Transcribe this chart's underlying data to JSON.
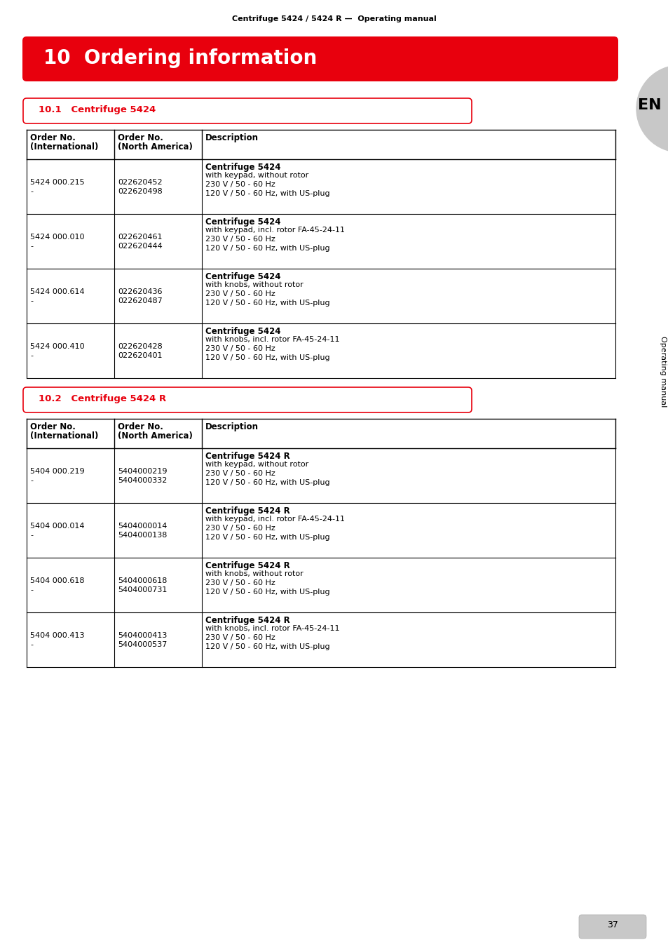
{
  "header_text": "Centrifuge 5424 / 5424 R —  Operating manual",
  "main_title": "10  Ordering information",
  "section1_title": "10.1   Centrifuge 5424",
  "section2_title": "10.2   Centrifuge 5424 R",
  "table1_rows": [
    {
      "int_order": [
        "5424 000.215",
        "-"
      ],
      "na_order": [
        "022620452",
        "022620498"
      ],
      "desc_bold": "Centrifuge 5424",
      "desc_lines": [
        "with keypad, without rotor",
        "230 V / 50 - 60 Hz",
        "120 V / 50 - 60 Hz, with US-plug"
      ]
    },
    {
      "int_order": [
        "5424 000.010",
        "-"
      ],
      "na_order": [
        "022620461",
        "022620444"
      ],
      "desc_bold": "Centrifuge 5424",
      "desc_lines": [
        "with keypad, incl. rotor FA-45-24-11",
        "230 V / 50 - 60 Hz",
        "120 V / 50 - 60 Hz, with US-plug"
      ]
    },
    {
      "int_order": [
        "5424 000.614",
        "-"
      ],
      "na_order": [
        "022620436",
        "022620487"
      ],
      "desc_bold": "Centrifuge 5424",
      "desc_lines": [
        "with knobs, without rotor",
        "230 V / 50 - 60 Hz",
        "120 V / 50 - 60 Hz, with US-plug"
      ]
    },
    {
      "int_order": [
        "5424 000.410",
        "-"
      ],
      "na_order": [
        "022620428",
        "022620401"
      ],
      "desc_bold": "Centrifuge 5424",
      "desc_lines": [
        "with knobs, incl. rotor FA-45-24-11",
        "230 V / 50 - 60 Hz",
        "120 V / 50 - 60 Hz, with US-plug"
      ]
    }
  ],
  "table2_rows": [
    {
      "int_order": [
        "5404 000.219",
        "-"
      ],
      "na_order": [
        "5404000219",
        "5404000332"
      ],
      "desc_bold": "Centrifuge 5424 R",
      "desc_lines": [
        "with keypad, without rotor",
        "230 V / 50 - 60 Hz",
        "120 V / 50 - 60 Hz, with US-plug"
      ]
    },
    {
      "int_order": [
        "5404 000.014",
        "-"
      ],
      "na_order": [
        "5404000014",
        "5404000138"
      ],
      "desc_bold": "Centrifuge 5424 R",
      "desc_lines": [
        "with keypad, incl. rotor FA-45-24-11",
        "230 V / 50 - 60 Hz",
        "120 V / 50 - 60 Hz, with US-plug"
      ]
    },
    {
      "int_order": [
        "5404 000.618",
        "-"
      ],
      "na_order": [
        "5404000618",
        "5404000731"
      ],
      "desc_bold": "Centrifuge 5424 R",
      "desc_lines": [
        "with knobs, without rotor",
        "230 V / 50 - 60 Hz",
        "120 V / 50 - 60 Hz, with US-plug"
      ]
    },
    {
      "int_order": [
        "5404 000.413",
        "-"
      ],
      "na_order": [
        "5404000413",
        "5404000537"
      ],
      "desc_bold": "Centrifuge 5424 R",
      "desc_lines": [
        "with knobs, incl. rotor FA-45-24-11",
        "230 V / 50 - 60 Hz",
        "120 V / 50 - 60 Hz, with US-plug"
      ]
    }
  ],
  "red_color": "#E8000D",
  "bg_color": "#FFFFFF",
  "side_tab_color": "#C8C8C8",
  "page_number": "37",
  "sidebar_text": "Operating manual"
}
